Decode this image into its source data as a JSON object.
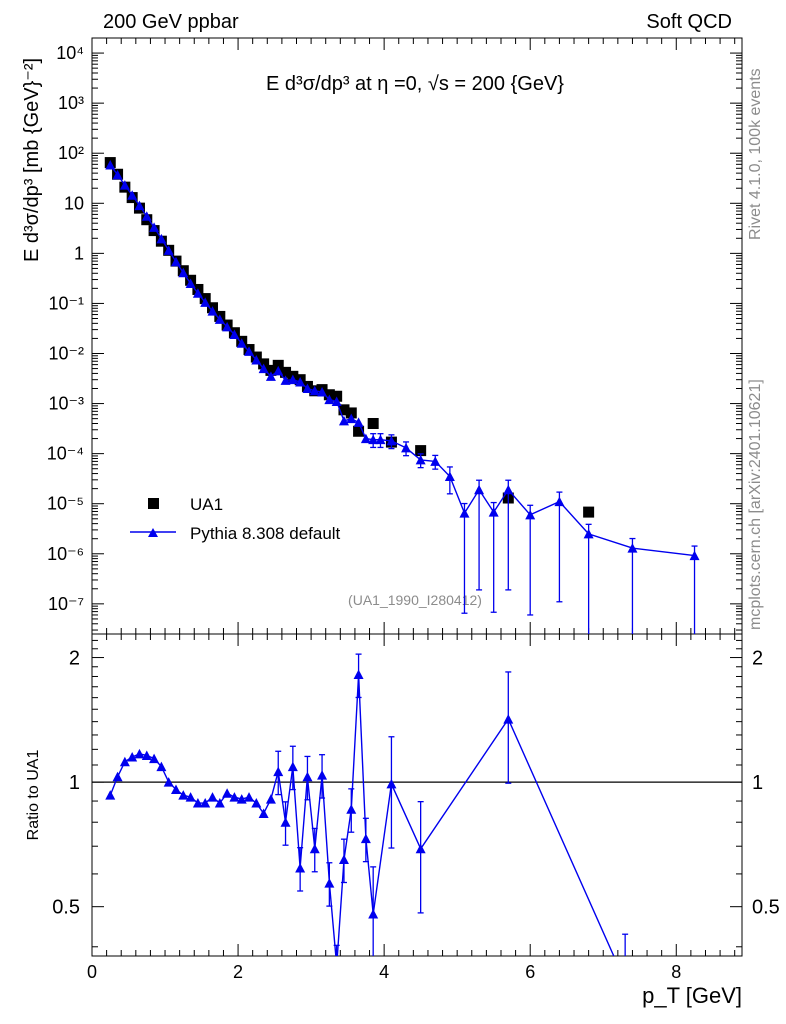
{
  "header": {
    "left_title": "200 GeV ppbar",
    "right_title": "Soft QCD",
    "analysis_tag": "(UA1_1990_I280412)",
    "side_top": "Rivet 4.1.0,  100k events",
    "side_bottom": "mcplots.cern.ch [arXiv:2401.10621]"
  },
  "colors": {
    "data": "#000000",
    "mc": "#0000ee",
    "watermark": "#8c8c8c"
  },
  "chart_data": [
    {
      "type": "scatter",
      "title": "E  d³σ/dp³ at η =0, √s = 200 {GeV}",
      "ylabel": "E d³σ/dp³ [mb {GeV}⁻²]",
      "xlabel": "p_T [GeV]",
      "yscale": "log",
      "xlim": [
        0,
        8.9
      ],
      "ylim": [
        2.5e-08,
        20000
      ],
      "y_ticks": [
        "10⁻⁷",
        "10⁻⁶",
        "10⁻⁵",
        "10⁻⁴",
        "10⁻³",
        "10⁻²",
        "10⁻¹",
        "1",
        "10",
        "10²",
        "10³",
        "10⁴"
      ],
      "legend_position": "lower-left",
      "series": [
        {
          "name": "UA1",
          "marker": "square",
          "x": [
            0.25,
            0.35,
            0.45,
            0.55,
            0.65,
            0.75,
            0.85,
            0.95,
            1.05,
            1.15,
            1.25,
            1.35,
            1.45,
            1.55,
            1.65,
            1.75,
            1.85,
            1.95,
            2.05,
            2.15,
            2.25,
            2.35,
            2.45,
            2.55,
            2.65,
            2.75,
            2.85,
            2.95,
            3.05,
            3.15,
            3.25,
            3.35,
            3.45,
            3.55,
            3.65,
            3.85,
            4.1,
            4.5,
            5.7,
            6.8
          ],
          "y": [
            65,
            38,
            21,
            13,
            8.0,
            4.7,
            2.85,
            1.75,
            1.15,
            0.7,
            0.45,
            0.29,
            0.19,
            0.125,
            0.082,
            0.055,
            0.037,
            0.026,
            0.0175,
            0.012,
            0.0085,
            0.0062,
            0.0046,
            0.0058,
            0.0042,
            0.0035,
            0.003,
            0.0022,
            0.0018,
            0.0019,
            0.0015,
            0.0014,
            0.00075,
            0.00065,
            0.00028,
            0.0004,
            0.00017,
            0.000115,
            1.3e-05,
            6.8e-06
          ]
        },
        {
          "name": "Pythia 8.308 default",
          "marker": "triangle",
          "x": [
            0.25,
            0.35,
            0.45,
            0.55,
            0.65,
            0.75,
            0.85,
            0.95,
            1.05,
            1.15,
            1.25,
            1.35,
            1.45,
            1.55,
            1.65,
            1.75,
            1.85,
            1.95,
            2.05,
            2.15,
            2.25,
            2.35,
            2.45,
            2.55,
            2.65,
            2.75,
            2.85,
            2.95,
            3.05,
            3.15,
            3.25,
            3.35,
            3.45,
            3.55,
            3.65,
            3.75,
            3.85,
            3.95,
            4.1,
            4.3,
            4.5,
            4.7,
            4.9,
            5.1,
            5.3,
            5.5,
            5.7,
            6.0,
            6.4,
            6.8,
            7.4,
            8.25
          ],
          "y": [
            58,
            37,
            23,
            14.5,
            9.0,
            5.5,
            3.3,
            1.95,
            1.15,
            0.68,
            0.41,
            0.25,
            0.16,
            0.105,
            0.07,
            0.048,
            0.034,
            0.024,
            0.016,
            0.011,
            0.0074,
            0.005,
            0.0035,
            0.0045,
            0.0029,
            0.003,
            0.0027,
            0.002,
            0.0018,
            0.0017,
            0.0012,
            0.0011,
            0.00045,
            0.0005,
            0.00042,
            0.0002,
            0.00019,
            0.00019,
            0.00018,
            0.00013,
            7.5e-05,
            7e-05,
            3.5e-05,
            6.5e-06,
            1.9e-05,
            6.8e-06,
            1.9e-05,
            6e-06,
            1.1e-05,
            2.5e-06,
            1.3e-06,
            9.2e-07
          ]
        }
      ]
    },
    {
      "type": "line",
      "ylabel": "Ratio to UA1",
      "xlabel": "p_T [GeV]",
      "xlim": [
        0,
        8.9
      ],
      "ylim": [
        0.38,
        2.28
      ],
      "x_ticks": [
        "0",
        "2",
        "4",
        "6",
        "8"
      ],
      "y_ticks": [
        "0.5",
        "1",
        "2"
      ],
      "reference_line": 1.0,
      "series": [
        {
          "name": "Pythia 8.308 default / UA1",
          "marker": "triangle",
          "x": [
            0.25,
            0.35,
            0.45,
            0.55,
            0.65,
            0.75,
            0.85,
            0.95,
            1.05,
            1.15,
            1.25,
            1.35,
            1.45,
            1.55,
            1.65,
            1.75,
            1.85,
            1.95,
            2.05,
            2.15,
            2.25,
            2.35,
            2.45,
            2.55,
            2.65,
            2.75,
            2.85,
            2.95,
            3.05,
            3.15,
            3.25,
            3.35,
            3.45,
            3.55,
            3.65,
            3.75,
            3.85,
            4.1,
            4.5,
            5.7,
            7.3
          ],
          "y": [
            0.93,
            1.03,
            1.12,
            1.15,
            1.17,
            1.16,
            1.14,
            1.09,
            1.0,
            0.96,
            0.93,
            0.92,
            0.89,
            0.89,
            0.92,
            0.89,
            0.94,
            0.92,
            0.91,
            0.92,
            0.89,
            0.84,
            0.91,
            1.06,
            0.8,
            1.09,
            0.62,
            1.03,
            0.69,
            1.04,
            0.57,
            0.36,
            0.65,
            0.86,
            1.82,
            0.73,
            0.48,
            0.99,
            0.69,
            1.42,
            0.33
          ]
        }
      ]
    }
  ]
}
